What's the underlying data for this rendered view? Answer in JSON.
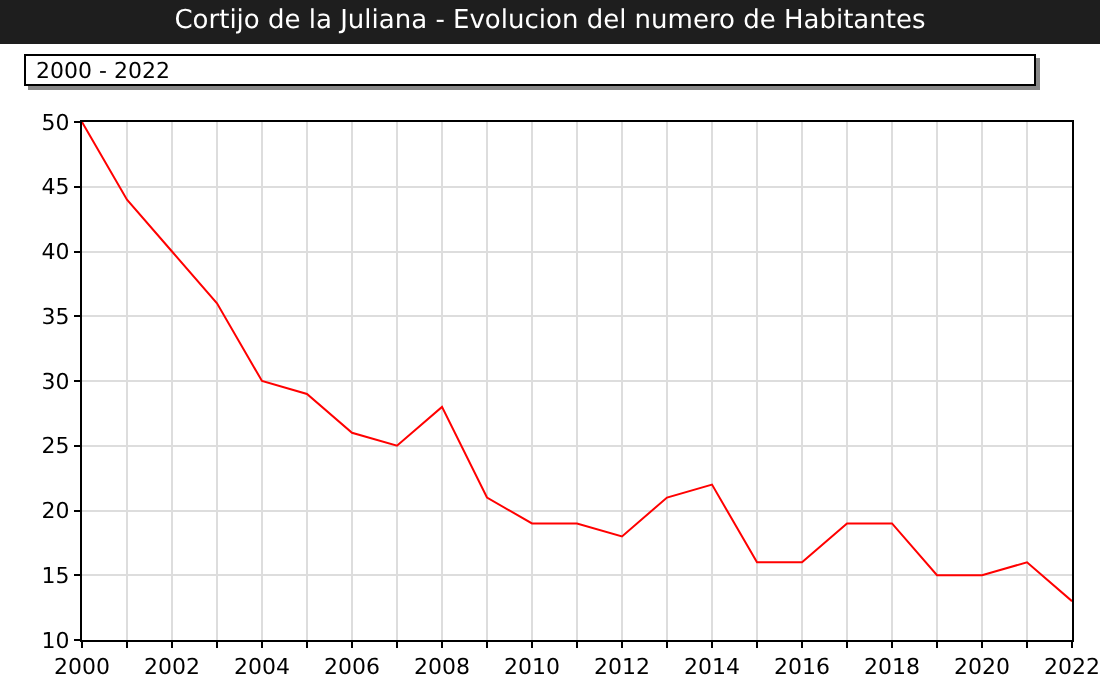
{
  "chart_data": {
    "type": "line",
    "title": "Cortijo de la Juliana - Evolucion del numero de Habitantes",
    "subtitle": "2000 - 2022",
    "x": [
      2000,
      2001,
      2002,
      2003,
      2004,
      2005,
      2006,
      2007,
      2008,
      2009,
      2010,
      2011,
      2012,
      2013,
      2014,
      2015,
      2016,
      2017,
      2018,
      2019,
      2020,
      2021,
      2022
    ],
    "series": [
      {
        "color": "#ff0000",
        "values": [
          50,
          44,
          40,
          36,
          30,
          29,
          26,
          25,
          28,
          21,
          19,
          19,
          18,
          21,
          22,
          16,
          16,
          19,
          19,
          15,
          15,
          16,
          13
        ]
      }
    ],
    "xlim": [
      2000,
      2022
    ],
    "xticks": [
      2000,
      {
        "value": 2001,
        "label": null
      },
      2002,
      {
        "value": 2003,
        "label": null
      },
      2004,
      {
        "value": 2005,
        "label": null
      },
      2006,
      {
        "value": 2007,
        "label": null
      },
      2008,
      {
        "value": 2009,
        "label": null
      },
      2010,
      {
        "value": 2011,
        "label": null
      },
      2012,
      {
        "value": 2013,
        "label": null
      },
      2014,
      {
        "value": 2015,
        "label": null
      },
      2016,
      {
        "value": 2017,
        "label": null
      },
      2018,
      {
        "value": 2019,
        "label": null
      },
      2020,
      {
        "value": 2021,
        "label": null
      },
      2022
    ],
    "ylim": [
      10,
      50
    ],
    "yticks": [
      10,
      15,
      20,
      25,
      30,
      35,
      40,
      45,
      50
    ],
    "grid": true,
    "marker": "none",
    "line_style": "solid"
  }
}
